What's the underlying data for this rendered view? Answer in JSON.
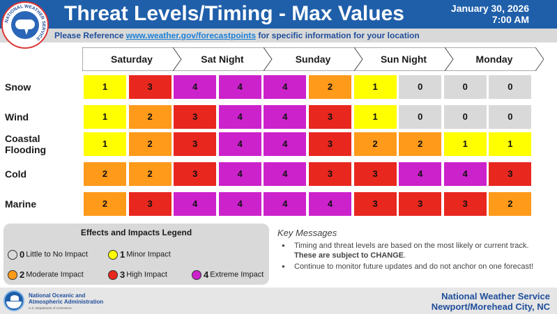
{
  "header": {
    "title": "Threat Levels/Timing - Max Values",
    "date": "January 30, 2026",
    "time": "7:00 AM",
    "logo_text": "NATIONAL WEATHER SERVICE"
  },
  "reference": {
    "prefix": "Please Reference ",
    "link": "www.weather.gov/forecastpoints",
    "suffix": " for specific information for your location"
  },
  "days": [
    "Saturday",
    "Sat Night",
    "Sunday",
    "Sun Night",
    "Monday"
  ],
  "level_colors": {
    "0": "#d9d9d9",
    "1": "#ffff00",
    "2": "#ff9a1a",
    "3": "#e8271e",
    "4": "#cc22cc"
  },
  "threats": [
    {
      "label": "Snow",
      "values": [
        1,
        3,
        4,
        4,
        4,
        2,
        1,
        0,
        0,
        0
      ]
    },
    {
      "label": "Wind",
      "values": [
        1,
        2,
        3,
        4,
        4,
        3,
        1,
        0,
        0,
        0
      ]
    },
    {
      "label": "Coastal Flooding",
      "values": [
        1,
        2,
        3,
        4,
        4,
        3,
        2,
        2,
        1,
        1
      ]
    },
    {
      "label": "Cold",
      "values": [
        2,
        2,
        3,
        4,
        4,
        3,
        3,
        4,
        4,
        3
      ]
    },
    {
      "label": "Marine",
      "values": [
        2,
        3,
        4,
        4,
        4,
        4,
        3,
        3,
        3,
        2
      ]
    }
  ],
  "legend": {
    "title": "Effects and Impacts Legend",
    "items": [
      {
        "level": "0",
        "desc": "Little to No Impact",
        "color": "#d9d9d9"
      },
      {
        "level": "1",
        "desc": "Minor Impact",
        "color": "#ffff00"
      },
      {
        "level": "2",
        "desc": "Moderate Impact",
        "color": "#ff9a1a"
      },
      {
        "level": "3",
        "desc": "High Impact",
        "color": "#e8271e"
      },
      {
        "level": "4",
        "desc": "Extreme Impact",
        "color": "#cc22cc"
      }
    ]
  },
  "key_messages": {
    "title": "Key Messages",
    "items": [
      {
        "text": "Timing and threat levels are based on the most likely or current track. ",
        "bold": "These are subject to CHANGE",
        "end": "."
      },
      {
        "text": "Continue to monitor future updates and do not anchor on one forecast!",
        "bold": "",
        "end": ""
      }
    ]
  },
  "footer": {
    "org_line1": "National Oceanic and",
    "org_line2": "Atmospheric Administration",
    "org_sub": "U.S. Department of Commerce",
    "office_line1": "National Weather Service",
    "office_line2": "Newport/Morehead City, NC"
  }
}
